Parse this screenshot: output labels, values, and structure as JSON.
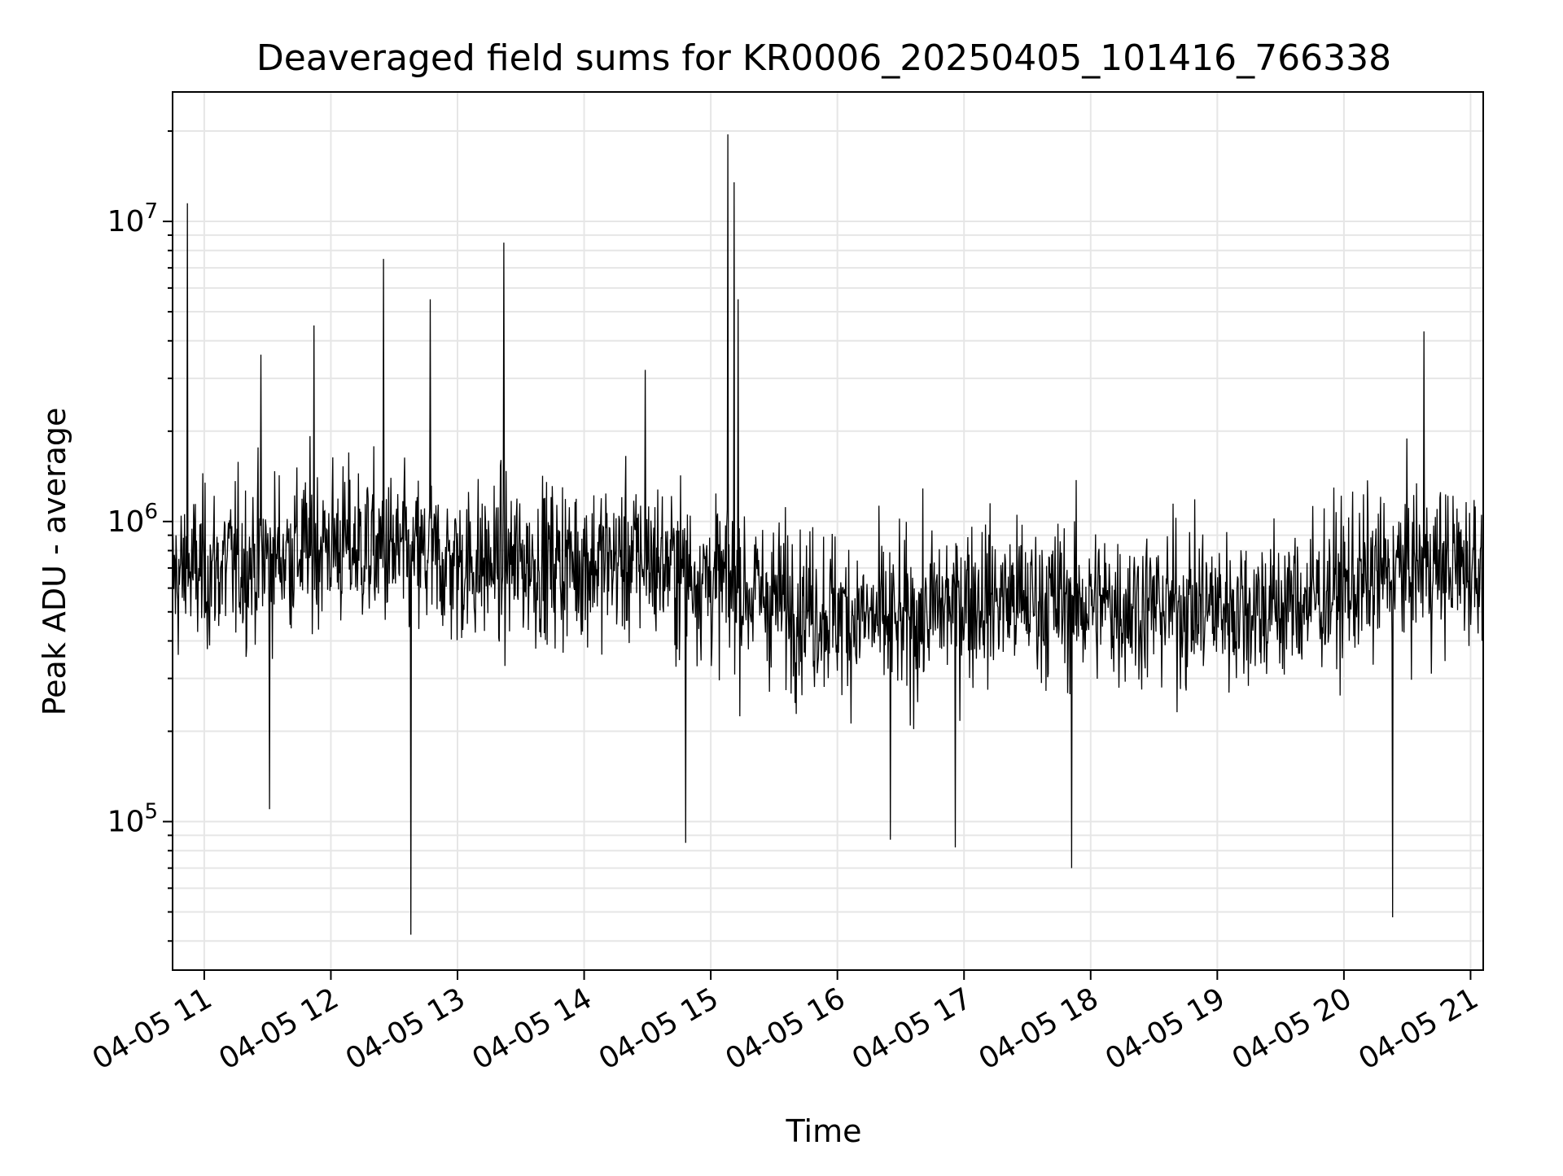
{
  "chart_data": {
    "type": "line",
    "title": "Deaveraged field sums for KR0006_20250405_101416_766338",
    "xlabel": "Time",
    "ylabel": "Peak ADU - average",
    "y_scale": "log",
    "x_range": [
      "04-05 10:45",
      "04-05 21:06"
    ],
    "ylim": [
      32000,
      27000000
    ],
    "grid": true,
    "line_color": "#000000",
    "grid_color": "#e6e6e6",
    "x_ticks": [
      "04-05 11",
      "04-05 12",
      "04-05 13",
      "04-05 14",
      "04-05 15",
      "04-05 16",
      "04-05 17",
      "04-05 18",
      "04-05 19",
      "04-05 20",
      "04-05 21"
    ],
    "x_tick_hours": [
      11,
      12,
      13,
      14,
      15,
      16,
      17,
      18,
      19,
      20,
      21
    ],
    "y_ticks": [
      {
        "base": "10",
        "exp": "5",
        "value": 100000
      },
      {
        "base": "10",
        "exp": "6",
        "value": 1000000
      },
      {
        "base": "10",
        "exp": "7",
        "value": 10000000
      }
    ],
    "series": [
      {
        "baseline_segments": [
          {
            "t": "04-05 10:45",
            "value": 650000
          },
          {
            "t": "04-05 12:00",
            "value": 850000
          },
          {
            "t": "04-05 13:00",
            "value": 720000
          },
          {
            "t": "04-05 14:30",
            "value": 750000
          },
          {
            "t": "04-05 15:30",
            "value": 550000
          },
          {
            "t": "04-05 16:30",
            "value": 450000
          },
          {
            "t": "04-05 17:00",
            "value": 560000
          },
          {
            "t": "04-05 18:30",
            "value": 520000
          },
          {
            "t": "04-05 19:30",
            "value": 520000
          },
          {
            "t": "04-05 20:30",
            "value": 700000
          },
          {
            "t": "04-05 21:06",
            "value": 720000
          }
        ],
        "notable_points": [
          {
            "t": "04-05 10:52",
            "value": 11500000
          },
          {
            "t": "04-05 11:27",
            "value": 3600000
          },
          {
            "t": "04-05 11:31",
            "value": 110000
          },
          {
            "t": "04-05 11:52",
            "value": 4500000
          },
          {
            "t": "04-05 12:25",
            "value": 7500000
          },
          {
            "t": "04-05 12:38",
            "value": 42000
          },
          {
            "t": "04-05 12:47",
            "value": 5500000
          },
          {
            "t": "04-05 13:22",
            "value": 8500000
          },
          {
            "t": "04-05 14:29",
            "value": 3200000
          },
          {
            "t": "04-05 14:48",
            "value": 85000
          },
          {
            "t": "04-05 15:08",
            "value": 19500000
          },
          {
            "t": "04-05 15:11",
            "value": 13500000
          },
          {
            "t": "04-05 15:13",
            "value": 5500000
          },
          {
            "t": "04-05 16:25",
            "value": 87000
          },
          {
            "t": "04-05 16:56",
            "value": 82000
          },
          {
            "t": "04-05 17:51",
            "value": 70000
          },
          {
            "t": "04-05 20:23",
            "value": 48000
          },
          {
            "t": "04-05 20:38",
            "value": 4300000
          }
        ]
      }
    ]
  }
}
